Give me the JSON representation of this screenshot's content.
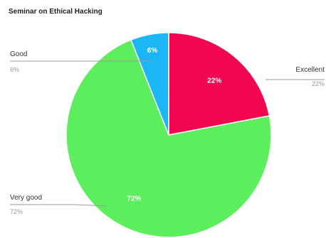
{
  "chart_data": {
    "type": "pie",
    "title": "Seminar on Ethical Hacking",
    "slices": [
      {
        "label": "Excellent",
        "value": 22,
        "display": "22%",
        "color": "#f2064f"
      },
      {
        "label": "Very good",
        "value": 72,
        "display": "72%",
        "color": "#5cee5c"
      },
      {
        "label": "Good",
        "value": 6,
        "display": "6%",
        "color": "#1ab6f5"
      }
    ]
  }
}
